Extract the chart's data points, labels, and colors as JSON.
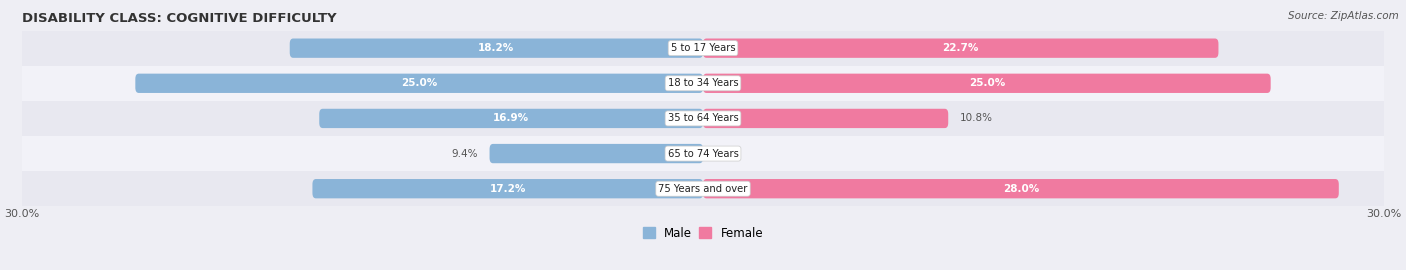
{
  "title": "DISABILITY CLASS: COGNITIVE DIFFICULTY",
  "source": "Source: ZipAtlas.com",
  "categories": [
    "5 to 17 Years",
    "18 to 34 Years",
    "35 to 64 Years",
    "65 to 74 Years",
    "75 Years and over"
  ],
  "male_values": [
    18.2,
    25.0,
    16.9,
    9.4,
    17.2
  ],
  "female_values": [
    22.7,
    25.0,
    10.8,
    0.0,
    28.0
  ],
  "male_color": "#8ab4d8",
  "female_color": "#f07aa0",
  "max_val": 30.0,
  "bg_color": "#eeeef4",
  "row_bg_even": "#e8e8f0",
  "row_bg_odd": "#f2f2f8",
  "label_color": "#555555",
  "title_color": "#333333",
  "bar_height": 0.55,
  "legend_male": "Male",
  "legend_female": "Female",
  "inside_label_color": "white",
  "outside_label_color": "#555555"
}
